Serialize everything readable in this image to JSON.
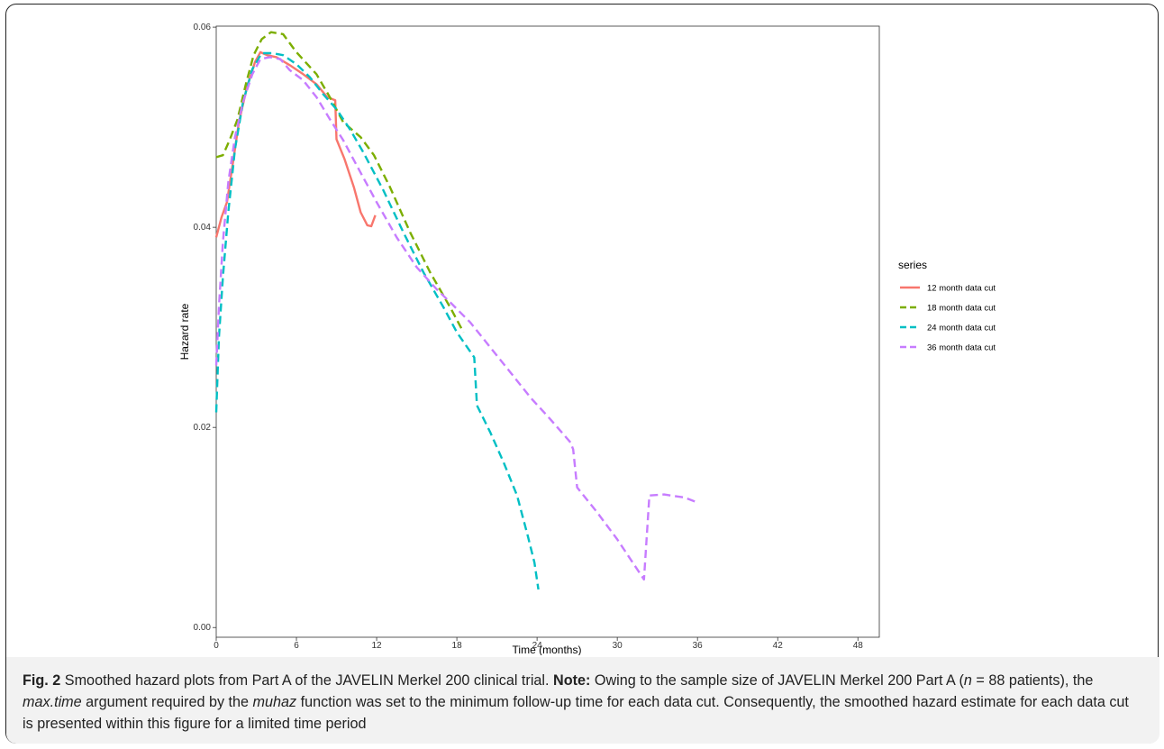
{
  "chart_data": {
    "type": "line",
    "xlabel": "Time (months)",
    "ylabel": "Hazard rate",
    "xlim": [
      0,
      48
    ],
    "ylim": [
      0,
      0.06
    ],
    "xticks": [
      0,
      6,
      12,
      18,
      24,
      30,
      36,
      42,
      48
    ],
    "yticks": [
      0.0,
      0.02,
      0.04,
      0.06
    ],
    "ytick_labels": [
      "0.00",
      "0.02",
      "0.04",
      "0.06"
    ],
    "grid": false,
    "legend": {
      "title": "series",
      "position": "right"
    },
    "series": [
      {
        "name": "12 month data cut",
        "color": "#f8766d",
        "dash": "solid",
        "points": [
          [
            0,
            0.039
          ],
          [
            0.4,
            0.041
          ],
          [
            0.8,
            0.0425
          ],
          [
            1.2,
            0.046
          ],
          [
            1.7,
            0.0505
          ],
          [
            2.3,
            0.054
          ],
          [
            2.9,
            0.0565
          ],
          [
            3.3,
            0.0575
          ],
          [
            3.8,
            0.0572
          ],
          [
            4.5,
            0.057
          ],
          [
            5.5,
            0.0562
          ],
          [
            6.5,
            0.0553
          ],
          [
            7.5,
            0.0543
          ],
          [
            8.3,
            0.053
          ],
          [
            8.9,
            0.0527
          ],
          [
            9.0,
            0.0488
          ],
          [
            9.6,
            0.0468
          ],
          [
            10.3,
            0.044
          ],
          [
            10.8,
            0.0415
          ],
          [
            11.3,
            0.0402
          ],
          [
            11.6,
            0.0401
          ],
          [
            11.9,
            0.0412
          ]
        ]
      },
      {
        "name": "18 month data cut",
        "color": "#7cae00",
        "dash": "dashed",
        "points": [
          [
            0,
            0.047
          ],
          [
            0.5,
            0.0472
          ],
          [
            1.0,
            0.0487
          ],
          [
            1.6,
            0.0508
          ],
          [
            2.2,
            0.0542
          ],
          [
            2.8,
            0.0572
          ],
          [
            3.4,
            0.0588
          ],
          [
            4.1,
            0.0595
          ],
          [
            5.0,
            0.0593
          ],
          [
            6.0,
            0.0575
          ],
          [
            7.5,
            0.0553
          ],
          [
            8.5,
            0.053
          ],
          [
            9.5,
            0.0505
          ],
          [
            10.8,
            0.049
          ],
          [
            11.8,
            0.0472
          ],
          [
            13.0,
            0.044
          ],
          [
            14.5,
            0.0395
          ],
          [
            16.0,
            0.0355
          ],
          [
            17.5,
            0.032
          ],
          [
            18.5,
            0.0295
          ]
        ]
      },
      {
        "name": "24 month data cut",
        "color": "#00bfc4",
        "dash": "dashed",
        "points": [
          [
            0,
            0.0215
          ],
          [
            0.2,
            0.029
          ],
          [
            0.5,
            0.035
          ],
          [
            0.9,
            0.0415
          ],
          [
            1.4,
            0.0478
          ],
          [
            2.0,
            0.0525
          ],
          [
            2.7,
            0.0558
          ],
          [
            3.4,
            0.0574
          ],
          [
            4.2,
            0.0574
          ],
          [
            5.0,
            0.0572
          ],
          [
            6.0,
            0.0563
          ],
          [
            7.0,
            0.055
          ],
          [
            8.0,
            0.0533
          ],
          [
            9.0,
            0.0518
          ],
          [
            10.0,
            0.0498
          ],
          [
            11.0,
            0.0475
          ],
          [
            12.5,
            0.0437
          ],
          [
            14.0,
            0.0395
          ],
          [
            15.5,
            0.0355
          ],
          [
            17.0,
            0.032
          ],
          [
            18.0,
            0.0295
          ],
          [
            19.3,
            0.027
          ],
          [
            19.5,
            0.0222
          ],
          [
            20.5,
            0.0195
          ],
          [
            21.5,
            0.0165
          ],
          [
            22.5,
            0.0132
          ],
          [
            23.3,
            0.0092
          ],
          [
            23.8,
            0.0065
          ],
          [
            24.1,
            0.0038
          ]
        ]
      },
      {
        "name": "36 month data cut",
        "color": "#c77cff",
        "dash": "dashed",
        "points": [
          [
            0,
            0.0262
          ],
          [
            0.2,
            0.032
          ],
          [
            0.5,
            0.0385
          ],
          [
            0.9,
            0.0445
          ],
          [
            1.4,
            0.049
          ],
          [
            2.0,
            0.0525
          ],
          [
            2.7,
            0.0553
          ],
          [
            3.3,
            0.0568
          ],
          [
            4.0,
            0.057
          ],
          [
            4.8,
            0.0568
          ],
          [
            5.5,
            0.0557
          ],
          [
            6.5,
            0.0547
          ],
          [
            7.5,
            0.053
          ],
          [
            8.5,
            0.0508
          ],
          [
            9.5,
            0.0487
          ],
          [
            10.5,
            0.0462
          ],
          [
            12.0,
            0.0425
          ],
          [
            13.5,
            0.039
          ],
          [
            15.0,
            0.036
          ],
          [
            16.5,
            0.0338
          ],
          [
            17.5,
            0.0325
          ],
          [
            19.0,
            0.0305
          ],
          [
            20.5,
            0.028
          ],
          [
            22.0,
            0.0255
          ],
          [
            23.5,
            0.023
          ],
          [
            25.0,
            0.0208
          ],
          [
            26.5,
            0.0185
          ],
          [
            26.7,
            0.0178
          ],
          [
            27.0,
            0.014
          ],
          [
            28.5,
            0.0115
          ],
          [
            30.0,
            0.0088
          ],
          [
            31.5,
            0.0058
          ],
          [
            32.0,
            0.0048
          ],
          [
            32.4,
            0.0132
          ],
          [
            33.5,
            0.0133
          ],
          [
            35.0,
            0.013
          ],
          [
            36.0,
            0.0125
          ]
        ]
      }
    ]
  },
  "caption": {
    "fig_label": "Fig. 2",
    "text1": " Smoothed hazard plots from Part A of the JAVELIN Merkel 200 clinical trial. ",
    "note_label": "Note:",
    "text2": " Owing to the sample size of JAVELIN Merkel 200 Part A (",
    "n_var": "n",
    "text3": " = 88 patients), the ",
    "arg1": "max.time",
    "text4": " argument required by the ",
    "arg2": "muhaz",
    "text5": " function was set to the minimum follow-up time for each data cut. Consequently, the smoothed hazard estimate for each data cut is presented within this figure for a limited time period"
  }
}
